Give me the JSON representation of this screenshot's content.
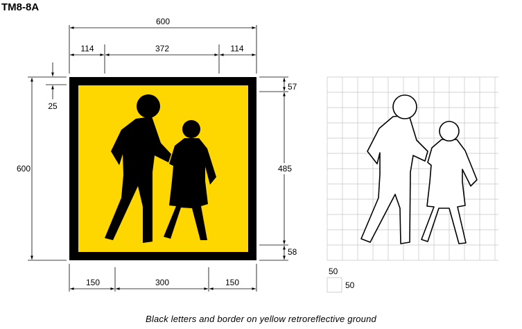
{
  "title": "TM8-8A",
  "sign": {
    "colors": {
      "border": "#000000",
      "background": "#FFD700",
      "symbol": "#000000"
    }
  },
  "dimensions": {
    "overall_width": "600",
    "left_inset": "114",
    "middle_span": "372",
    "right_inset": "114",
    "overall_height": "600",
    "corner_offset": "25",
    "top_border": "57",
    "symbol_height": "485",
    "bottom_border": "58",
    "bottom_left": "150",
    "bottom_middle": "300",
    "bottom_right": "150"
  },
  "grid_legend": {
    "cell_height": "50",
    "cell_width": "50"
  },
  "caption": "Black letters and border on yellow retroreflective ground"
}
